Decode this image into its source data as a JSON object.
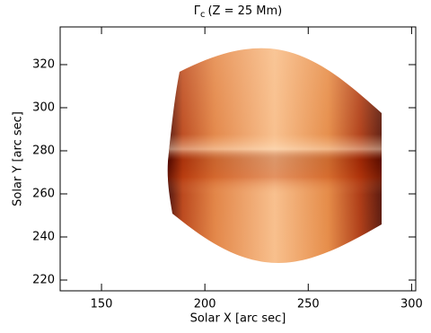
{
  "chart_data": {
    "type": "image",
    "title": {
      "symbol": "Γ",
      "subscript": "c",
      "text": "(Z = 25 Mm)"
    },
    "x_label": "Solar X [arc sec]",
    "y_label": "Solar Y [arc sec]",
    "xlim": [
      130,
      302
    ],
    "xticks": [
      150,
      200,
      250,
      300
    ],
    "ylim": [
      215,
      337.5
    ],
    "yticks": [
      220,
      240,
      260,
      280,
      300,
      320
    ]
  }
}
